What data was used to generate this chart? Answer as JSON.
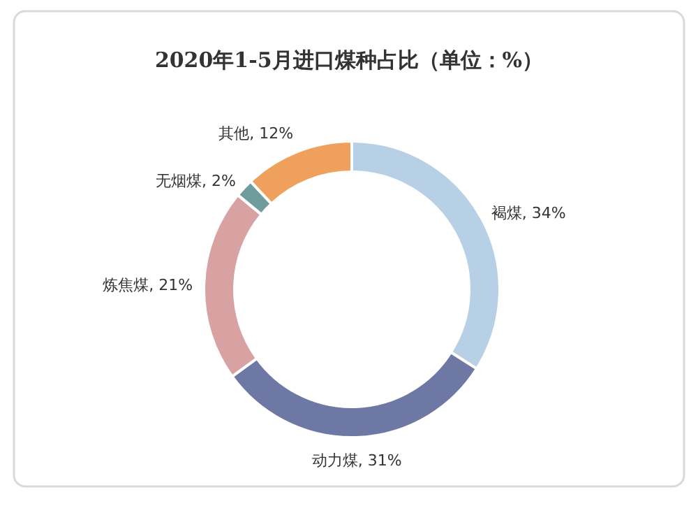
{
  "chart_data": {
    "type": "donut",
    "title": "2020年1-5月进口煤种占比（单位：%）",
    "categories": [
      "褐煤",
      "动力煤",
      "炼焦煤",
      "无烟煤",
      "其他"
    ],
    "values": [
      34,
      31,
      21,
      2,
      12
    ],
    "value_labels": [
      "34%",
      "31%",
      "21%",
      "2%",
      "12%"
    ],
    "colors": [
      "#b7d0e6",
      "#6e78a4",
      "#d8a2a2",
      "#6f9d9d",
      "#eea05c"
    ]
  }
}
